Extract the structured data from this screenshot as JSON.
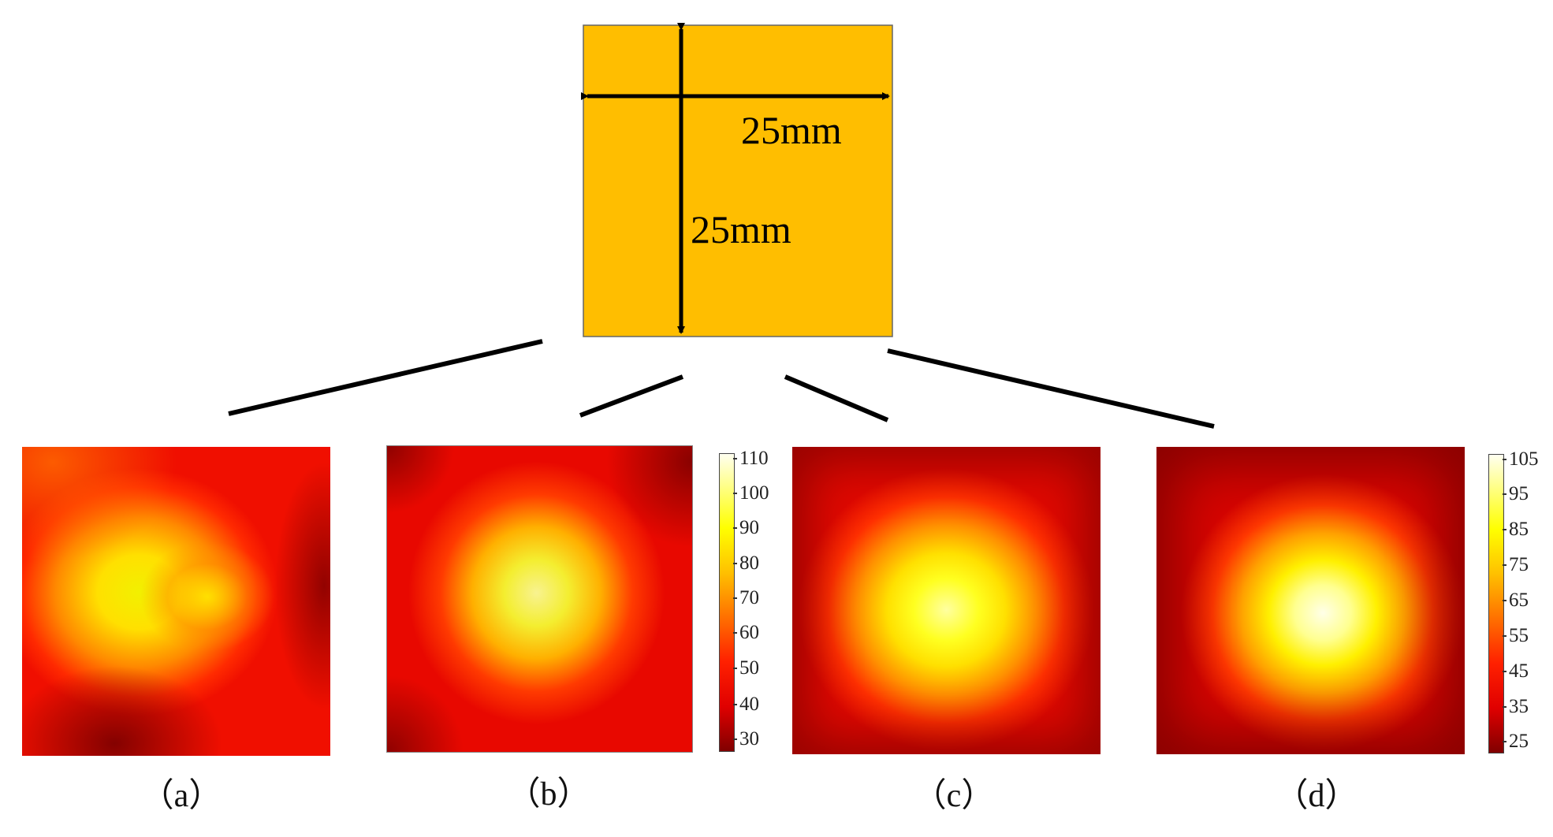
{
  "plate": {
    "width_label": "25mm",
    "height_label": "25mm",
    "color": "#FFBE00"
  },
  "panels": [
    {
      "label": "（a）"
    },
    {
      "label": "（b）"
    },
    {
      "label": "（c）"
    },
    {
      "label": "（d）"
    }
  ],
  "colorbars": [
    {
      "ticks": [
        "110",
        "100",
        "90",
        "80",
        "70",
        "60",
        "50",
        "40",
        "30"
      ]
    },
    {
      "ticks": [
        "105",
        "95",
        "85",
        "75",
        "65",
        "55",
        "45",
        "35",
        "25"
      ]
    }
  ],
  "colors": {
    "cold": "#8B0000",
    "mid": "#FF1A00",
    "warm": "#FF8C00",
    "hot": "#FFFF00",
    "hottest": "#FFFFE0"
  }
}
